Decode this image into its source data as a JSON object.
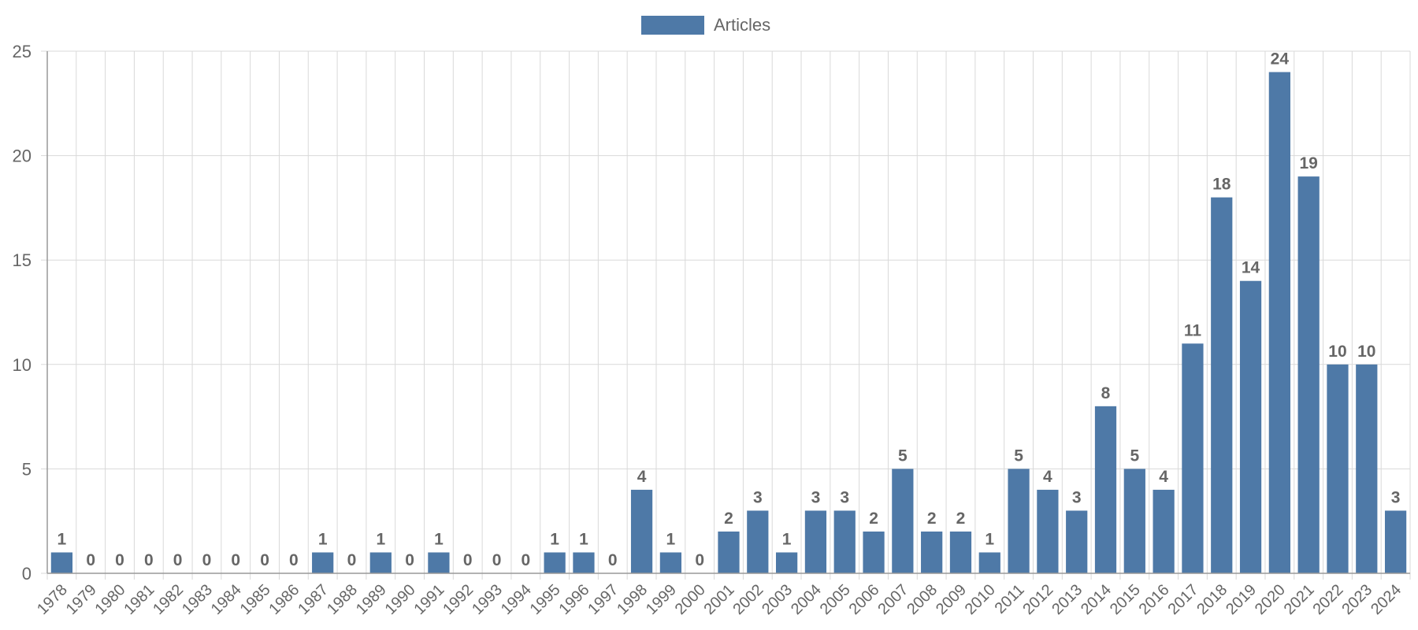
{
  "colors": {
    "bar": "#4e79a7",
    "grid": "#d9d9d9",
    "axis": "#999999",
    "text": "#666666"
  },
  "chart_data": {
    "type": "bar",
    "legend": {
      "position": "top",
      "entries": [
        "Articles"
      ]
    },
    "grid": true,
    "xlabel": "",
    "ylabel": "",
    "ylim": [
      0,
      25
    ],
    "yticks": [
      0,
      5,
      10,
      15,
      20,
      25
    ],
    "categories": [
      "1978",
      "1979",
      "1980",
      "1981",
      "1982",
      "1983",
      "1984",
      "1985",
      "1986",
      "1987",
      "1988",
      "1989",
      "1990",
      "1991",
      "1992",
      "1993",
      "1994",
      "1995",
      "1996",
      "1997",
      "1998",
      "1999",
      "2000",
      "2001",
      "2002",
      "2003",
      "2004",
      "2005",
      "2006",
      "2007",
      "2008",
      "2009",
      "2010",
      "2011",
      "2012",
      "2013",
      "2014",
      "2015",
      "2016",
      "2017",
      "2018",
      "2019",
      "2020",
      "2021",
      "2022",
      "2023",
      "2024"
    ],
    "series": [
      {
        "name": "Articles",
        "values": [
          1,
          0,
          0,
          0,
          0,
          0,
          0,
          0,
          0,
          1,
          0,
          1,
          0,
          1,
          0,
          0,
          0,
          1,
          1,
          0,
          4,
          1,
          0,
          2,
          3,
          1,
          3,
          3,
          2,
          5,
          2,
          2,
          1,
          5,
          4,
          3,
          8,
          5,
          4,
          11,
          18,
          14,
          24,
          19,
          10,
          10,
          3
        ]
      }
    ]
  }
}
